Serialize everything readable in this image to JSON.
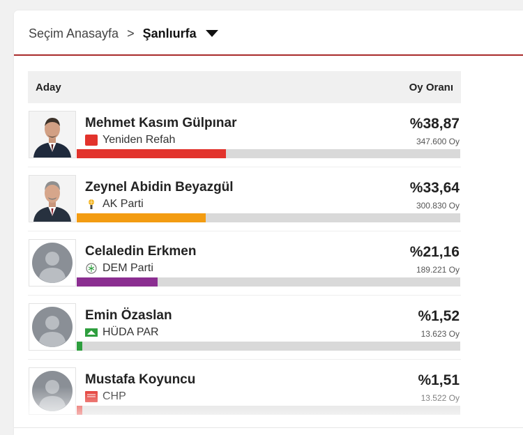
{
  "breadcrumb": {
    "home": "Seçim Anasayfa",
    "separator": ">",
    "current": "Şanlıurfa"
  },
  "table": {
    "col_candidate": "Aday",
    "col_rate": "Oy Oranı"
  },
  "candidates": [
    {
      "name": "Mehmet Kasım Gülpınar",
      "party": "Yeniden Refah",
      "percent": "%38,87",
      "votes": "347.600 Oy",
      "share": 38.87,
      "color": "#e2332c",
      "photo": "person"
    },
    {
      "name": "Zeynel Abidin Beyazgül",
      "party": "AK Parti",
      "percent": "%33,64",
      "votes": "300.830 Oy",
      "share": 33.64,
      "color": "#f39c12",
      "photo": "person"
    },
    {
      "name": "Celaledin Erkmen",
      "party": "DEM Parti",
      "percent": "%21,16",
      "votes": "189.221 Oy",
      "share": 21.16,
      "color": "#8b2e91",
      "photo": "placeholder"
    },
    {
      "name": "Emin Özaslan",
      "party": "HÜDA PAR",
      "percent": "%1,52",
      "votes": "13.623 Oy",
      "share": 1.52,
      "color": "#2e9e3e",
      "photo": "placeholder"
    },
    {
      "name": "Mustafa Koyuncu",
      "party": "CHP",
      "percent": "%1,51",
      "votes": "13.522 Oy",
      "share": 1.51,
      "color": "#e2332c",
      "photo": "placeholder"
    }
  ]
}
